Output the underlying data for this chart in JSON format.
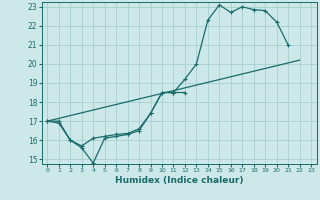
{
  "xlabel": "Humidex (Indice chaleur)",
  "background_color": "#cde8e8",
  "grid_color": "#a8cece",
  "line_color": "#1a6b6b",
  "xlim": [
    -0.5,
    23.5
  ],
  "ylim": [
    14.75,
    23.25
  ],
  "xticks": [
    0,
    1,
    2,
    3,
    4,
    5,
    6,
    7,
    8,
    9,
    10,
    11,
    12,
    13,
    14,
    15,
    16,
    17,
    18,
    19,
    20,
    21,
    22,
    23
  ],
  "yticks": [
    15,
    16,
    17,
    18,
    19,
    20,
    21,
    22,
    23
  ],
  "series1_x": [
    0,
    1,
    2,
    3,
    4,
    5,
    6,
    7,
    8,
    9,
    10,
    11,
    12,
    13,
    14,
    15,
    16,
    17,
    18,
    19,
    20,
    21
  ],
  "series1_y": [
    17.0,
    17.0,
    16.0,
    15.7,
    16.1,
    16.2,
    16.3,
    16.35,
    16.6,
    17.4,
    18.5,
    18.5,
    19.2,
    20.0,
    22.3,
    23.1,
    22.7,
    23.0,
    22.85,
    22.8,
    22.2,
    21.0
  ],
  "series2_x": [
    0,
    1,
    2,
    3,
    4,
    5,
    6,
    7,
    8,
    9,
    10,
    11,
    12
  ],
  "series2_y": [
    17.0,
    16.9,
    16.0,
    15.6,
    14.8,
    16.1,
    16.2,
    16.3,
    16.5,
    17.4,
    18.5,
    18.5,
    18.5
  ],
  "series3_x": [
    0,
    22
  ],
  "series3_y": [
    17.0,
    20.2
  ]
}
